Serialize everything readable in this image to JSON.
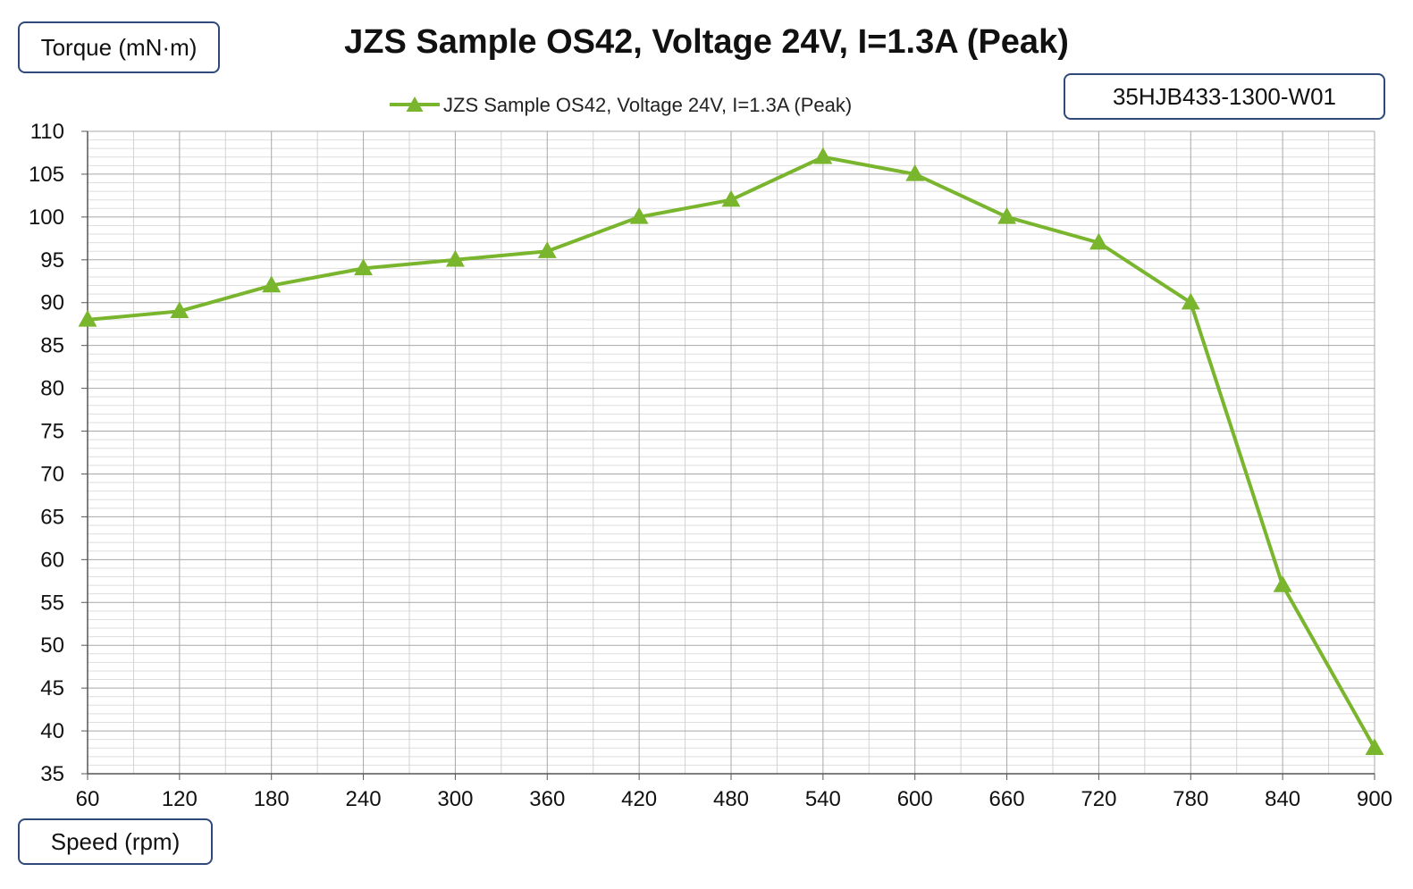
{
  "chart_data": {
    "type": "line",
    "title": "JZS Sample OS42, Voltage 24V, I=1.3A (Peak)",
    "xlabel": "Speed (rpm)",
    "ylabel": "Torque (mN·m)",
    "model": "35HJB433-1300-W01",
    "x": [
      60,
      120,
      180,
      240,
      300,
      360,
      420,
      480,
      540,
      600,
      660,
      720,
      780,
      840,
      900
    ],
    "x_ticks": [
      "60",
      "120",
      "180",
      "240",
      "300",
      "360",
      "420",
      "480",
      "540",
      "600",
      "660",
      "720",
      "780",
      "840",
      "900"
    ],
    "y_ticks": [
      "35",
      "40",
      "45",
      "50",
      "55",
      "60",
      "65",
      "70",
      "75",
      "80",
      "85",
      "90",
      "95",
      "100",
      "105",
      "110"
    ],
    "ylim": [
      35,
      110
    ],
    "grid": true,
    "legend_position": "top-center",
    "series": [
      {
        "name": "JZS Sample OS42, Voltage 24V, I=1.3A (Peak)",
        "color": "#7ab52e",
        "marker": "triangle",
        "values": [
          88,
          89,
          92,
          94,
          95,
          96,
          100,
          102,
          107,
          105,
          100,
          97,
          90,
          57,
          38
        ]
      }
    ]
  }
}
